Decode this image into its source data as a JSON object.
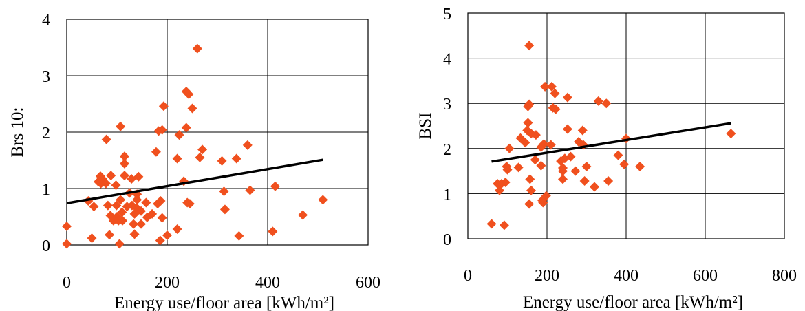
{
  "chart_data": [
    {
      "type": "scatter",
      "xlabel": "Energy use/floor area [kWh/m²]",
      "ylabel": "Brs 10:",
      "xlim": [
        0,
        600
      ],
      "ylim": [
        0,
        4
      ],
      "xticks": [
        "0",
        "200",
        "400",
        "600"
      ],
      "yticks": [
        "0",
        "1",
        "2",
        "3",
        "4"
      ],
      "grid": true,
      "marker": "diamond",
      "marker_color": "#f0501e",
      "trendline": {
        "x": [
          0,
          510
        ],
        "y": [
          0.74,
          1.51
        ]
      },
      "points": [
        [
          260,
          3.48
        ],
        [
          238,
          2.72
        ],
        [
          243,
          2.67
        ],
        [
          193,
          2.46
        ],
        [
          250,
          2.42
        ],
        [
          107,
          2.1
        ],
        [
          238,
          2.08
        ],
        [
          190,
          2.04
        ],
        [
          183,
          2.02
        ],
        [
          224,
          1.95
        ],
        [
          79,
          1.87
        ],
        [
          360,
          1.77
        ],
        [
          270,
          1.69
        ],
        [
          178,
          1.65
        ],
        [
          115,
          1.57
        ],
        [
          265,
          1.55
        ],
        [
          220,
          1.53
        ],
        [
          338,
          1.53
        ],
        [
          309,
          1.49
        ],
        [
          115,
          1.44
        ],
        [
          67,
          1.22
        ],
        [
          88,
          1.23
        ],
        [
          115,
          1.23
        ],
        [
          143,
          1.21
        ],
        [
          71,
          1.17
        ],
        [
          129,
          1.17
        ],
        [
          233,
          1.13
        ],
        [
          63,
          1.12
        ],
        [
          68,
          1.09
        ],
        [
          78,
          1.09
        ],
        [
          98,
          1.06
        ],
        [
          415,
          1.04
        ],
        [
          313,
          0.95
        ],
        [
          365,
          0.97
        ],
        [
          125,
          0.92
        ],
        [
          140,
          0.9
        ],
        [
          43,
          0.78
        ],
        [
          107,
          0.8
        ],
        [
          140,
          0.8
        ],
        [
          158,
          0.75
        ],
        [
          187,
          0.78
        ],
        [
          240,
          0.75
        ],
        [
          181,
          0.73
        ],
        [
          82,
          0.7
        ],
        [
          99,
          0.7
        ],
        [
          130,
          0.7
        ],
        [
          245,
          0.73
        ],
        [
          54,
          0.68
        ],
        [
          120,
          0.68
        ],
        [
          140,
          0.65
        ],
        [
          315,
          0.63
        ],
        [
          148,
          0.6
        ],
        [
          110,
          0.58
        ],
        [
          170,
          0.55
        ],
        [
          135,
          0.55
        ],
        [
          510,
          0.8
        ],
        [
          470,
          0.53
        ],
        [
          87,
          0.52
        ],
        [
          100,
          0.5
        ],
        [
          160,
          0.49
        ],
        [
          190,
          0.48
        ],
        [
          93,
          0.43
        ],
        [
          103,
          0.43
        ],
        [
          111,
          0.43
        ],
        [
          133,
          0.37
        ],
        [
          148,
          0.37
        ],
        [
          0,
          0.33
        ],
        [
          220,
          0.28
        ],
        [
          410,
          0.24
        ],
        [
          135,
          0.19
        ],
        [
          85,
          0.18
        ],
        [
          200,
          0.17
        ],
        [
          343,
          0.16
        ],
        [
          50,
          0.12
        ],
        [
          186,
          0.08
        ],
        [
          0,
          0.02
        ],
        [
          105,
          0.02
        ]
      ]
    },
    {
      "type": "scatter",
      "xlabel": "Energy use/floor area [kWh/m²]",
      "ylabel": "BSI",
      "xlim": [
        0,
        800
      ],
      "ylim": [
        0,
        5
      ],
      "xticks": [
        "0",
        "200",
        "400",
        "600",
        "800"
      ],
      "yticks": [
        "0",
        "1",
        "2",
        "3",
        "4",
        "5"
      ],
      "grid": true,
      "marker": "diamond",
      "marker_color": "#f0501e",
      "trendline": {
        "x": [
          60,
          665
        ],
        "y": [
          1.71,
          2.56
        ]
      },
      "points": [
        [
          155,
          4.28
        ],
        [
          195,
          3.37
        ],
        [
          212,
          3.37
        ],
        [
          220,
          3.22
        ],
        [
          252,
          3.13
        ],
        [
          330,
          3.05
        ],
        [
          350,
          3.0
        ],
        [
          155,
          2.98
        ],
        [
          152,
          2.93
        ],
        [
          215,
          2.9
        ],
        [
          222,
          2.87
        ],
        [
          152,
          2.57
        ],
        [
          252,
          2.43
        ],
        [
          150,
          2.4
        ],
        [
          290,
          2.4
        ],
        [
          160,
          2.33
        ],
        [
          665,
          2.33
        ],
        [
          172,
          2.3
        ],
        [
          133,
          2.23
        ],
        [
          145,
          2.13
        ],
        [
          280,
          2.15
        ],
        [
          292,
          2.08
        ],
        [
          400,
          2.22
        ],
        [
          192,
          2.1
        ],
        [
          210,
          2.08
        ],
        [
          185,
          2.03
        ],
        [
          105,
          2.0
        ],
        [
          260,
          1.82
        ],
        [
          245,
          1.78
        ],
        [
          235,
          1.72
        ],
        [
          170,
          1.75
        ],
        [
          380,
          1.85
        ],
        [
          395,
          1.65
        ],
        [
          435,
          1.6
        ],
        [
          185,
          1.62
        ],
        [
          240,
          1.57
        ],
        [
          300,
          1.6
        ],
        [
          98,
          1.6
        ],
        [
          128,
          1.58
        ],
        [
          240,
          1.5
        ],
        [
          272,
          1.5
        ],
        [
          100,
          1.53
        ],
        [
          157,
          1.32
        ],
        [
          240,
          1.32
        ],
        [
          295,
          1.28
        ],
        [
          355,
          1.28
        ],
        [
          75,
          1.22
        ],
        [
          95,
          1.25
        ],
        [
          85,
          1.22
        ],
        [
          320,
          1.15
        ],
        [
          160,
          1.07
        ],
        [
          80,
          1.07
        ],
        [
          198,
          0.95
        ],
        [
          188,
          0.85
        ],
        [
          155,
          0.77
        ],
        [
          190,
          0.8
        ],
        [
          60,
          0.33
        ],
        [
          92,
          0.3
        ]
      ]
    }
  ]
}
